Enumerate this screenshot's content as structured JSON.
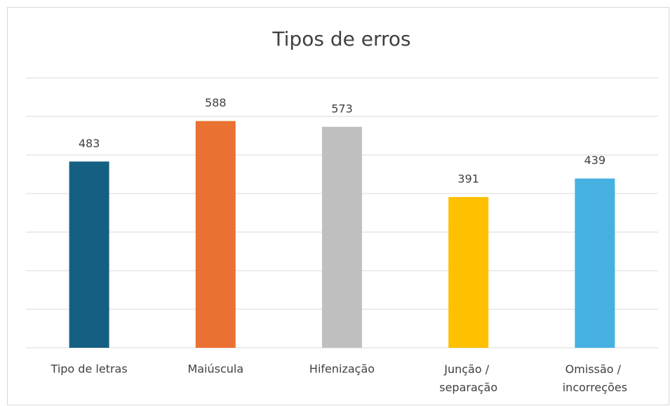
{
  "chart_data": {
    "type": "bar",
    "title": "Tipos de erros",
    "categories": [
      "Tipo de letras",
      "Maiúscula",
      "Hifenização",
      "Junção / separação",
      "Omissão / incorreções"
    ],
    "values": [
      483,
      588,
      573,
      391,
      439
    ],
    "colors": [
      "#156082",
      "#e97132",
      "#bfbfbf",
      "#ffc000",
      "#46b1e1"
    ],
    "ylim": [
      0,
      700
    ],
    "yticks": [
      0,
      100,
      200,
      300,
      400,
      500,
      600,
      700
    ],
    "show_tick_labels": false,
    "grid": true,
    "data_labels": true
  }
}
